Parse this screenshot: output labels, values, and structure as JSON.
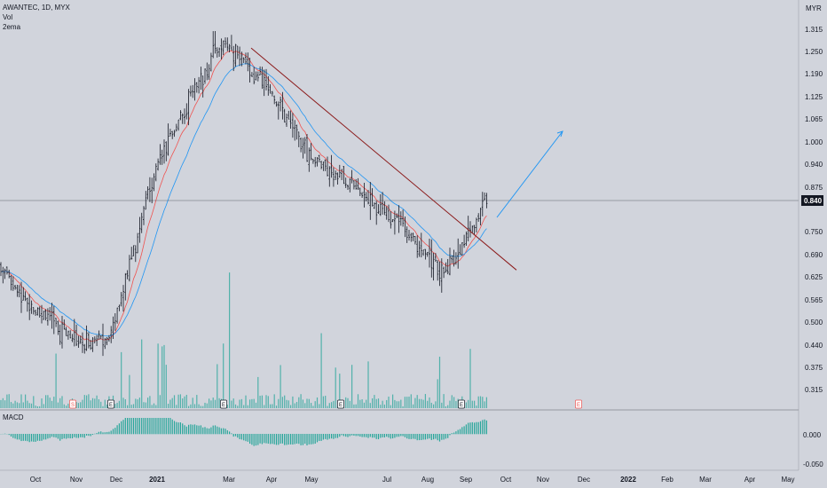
{
  "header": {
    "symbol_line": "AWANTEC, 1D, MYX",
    "vol_label": "Vol",
    "ema_label": "2ema",
    "macd_label": "MACD",
    "currency": "MYR"
  },
  "price_axis": {
    "ticks": [
      "1.315",
      "1.250",
      "1.190",
      "1.125",
      "1.065",
      "1.000",
      "0.940",
      "0.875",
      "0.750",
      "0.690",
      "0.625",
      "0.565",
      "0.500",
      "0.440",
      "0.375",
      "0.315"
    ],
    "current_price": "0.840"
  },
  "macd_axis": {
    "ticks": [
      "0.000",
      "-0.050"
    ]
  },
  "time_axis": {
    "labels": [
      "Oct",
      "Nov",
      "Dec",
      "2021",
      "Mar",
      "Apr",
      "May",
      "Jul",
      "Aug",
      "Sep",
      "Oct",
      "Nov",
      "Dec",
      "2022",
      "Feb",
      "Mar",
      "Apr",
      "May"
    ],
    "bold": [
      "2021",
      "2022"
    ]
  },
  "event_markers": [
    {
      "text": "S",
      "color": "#ef5350"
    },
    {
      "text": "E",
      "color": "#131722"
    },
    {
      "text": "E",
      "color": "#131722"
    },
    {
      "text": "E",
      "color": "#131722"
    },
    {
      "text": "E",
      "color": "#131722"
    },
    {
      "text": "E",
      "color": "#ef5350"
    }
  ],
  "colors": {
    "background": "#d1d4dc",
    "candle": "#131722",
    "volume": "#26a69a",
    "ema_fast": "#ef5350",
    "ema_slow": "#2196f3",
    "trendline": "#8b1a1a",
    "projection": "#2196f3",
    "price_label_bg": "#131722"
  },
  "chart_data": {
    "type": "candlestick",
    "series": [
      {
        "name": "AWANTEC, 1D, MYX"
      },
      {
        "name": "Vol"
      },
      {
        "name": "2ema"
      },
      {
        "name": "MACD"
      }
    ],
    "price_range": [
      0.28,
      1.36
    ],
    "macd_range": [
      -0.06,
      0.03
    ],
    "current_price": 0.84,
    "key_points": [
      {
        "date": "Oct",
        "price": 0.58
      },
      {
        "date": "Nov",
        "price": 0.44
      },
      {
        "date": "Dec",
        "price": 0.47
      },
      {
        "date": "2021",
        "price": 0.95
      },
      {
        "date": "Mar",
        "price": 1.28
      },
      {
        "date": "Apr",
        "price": 1.16
      },
      {
        "date": "May",
        "price": 0.97
      },
      {
        "date": "Jul",
        "price": 0.8
      },
      {
        "date": "Aug",
        "price": 0.63
      },
      {
        "date": "Sep",
        "price": 0.84
      }
    ],
    "trendline": {
      "from": {
        "date": "Mar",
        "price": 1.26
      },
      "to": {
        "date": "Oct",
        "price": 0.645
      }
    },
    "projection": {
      "from": {
        "date": "Sep",
        "price": 0.79
      },
      "to": {
        "date": "Nov",
        "price": 1.03
      }
    }
  }
}
